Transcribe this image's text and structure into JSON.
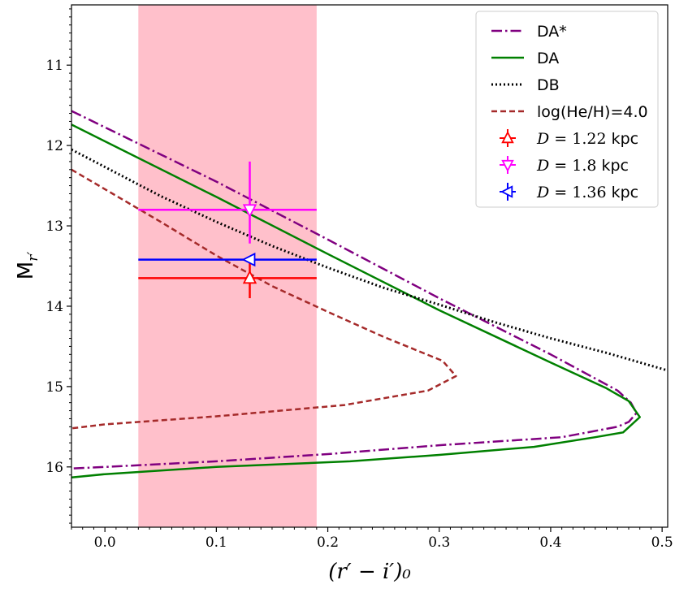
{
  "chart_data": {
    "type": "line",
    "xlabel": "(r′ − i′)₀",
    "ylabel": "M",
    "ylabel_sub": "r′",
    "xlim": [
      -0.03,
      0.505
    ],
    "ylim": [
      16.75,
      10.25
    ],
    "y_inverted": true,
    "x_ticks": [
      0.0,
      0.1,
      0.2,
      0.3,
      0.4,
      0.5
    ],
    "x_tick_labels": [
      "0.0",
      "0.1",
      "0.2",
      "0.3",
      "0.4",
      "0.5"
    ],
    "y_ticks": [
      11,
      12,
      13,
      14,
      15,
      16
    ],
    "y_tick_labels": [
      "11",
      "12",
      "13",
      "14",
      "15",
      "16"
    ],
    "shaded_band": {
      "x_from": 0.03,
      "x_to": 0.19,
      "color": "#ffc0cb"
    },
    "legend_position": "top-right",
    "series": [
      {
        "name": "DA*",
        "color": "#800080",
        "style": "dashdot",
        "x": [
          -0.03,
          0.1,
          0.2,
          0.3,
          0.4,
          0.46,
          0.472,
          0.477,
          0.47,
          0.46,
          0.41,
          0.3,
          0.2,
          0.1,
          0.0,
          -0.03
        ],
        "y": [
          11.57,
          12.45,
          13.17,
          13.9,
          14.6,
          15.05,
          15.2,
          15.33,
          15.44,
          15.5,
          15.63,
          15.73,
          15.84,
          15.93,
          16.0,
          16.02
        ]
      },
      {
        "name": "DA",
        "color": "#008000",
        "style": "solid",
        "x": [
          -0.03,
          0.1,
          0.2,
          0.3,
          0.4,
          0.45,
          0.47,
          0.48,
          0.465,
          0.44,
          0.385,
          0.3,
          0.22,
          0.1,
          0.0,
          -0.03
        ],
        "y": [
          11.74,
          12.64,
          13.35,
          14.05,
          14.7,
          15.02,
          15.18,
          15.38,
          15.57,
          15.63,
          15.75,
          15.85,
          15.93,
          16.0,
          16.09,
          16.13
        ]
      },
      {
        "name": "DB",
        "color": "#000000",
        "style": "dotted",
        "x": [
          -0.03,
          0.05,
          0.1,
          0.15,
          0.2,
          0.25,
          0.3,
          0.35,
          0.4,
          0.45,
          0.505
        ],
        "y": [
          12.05,
          12.63,
          12.95,
          13.25,
          13.52,
          13.77,
          13.98,
          14.2,
          14.4,
          14.58,
          14.8
        ]
      },
      {
        "name": "log(He/H)=4.0",
        "color": "#a52a2a",
        "style": "dashed",
        "x": [
          -0.03,
          0.05,
          0.1,
          0.15,
          0.2,
          0.25,
          0.28,
          0.303,
          0.315,
          0.29,
          0.215,
          0.1,
          0.0,
          -0.03
        ],
        "y": [
          12.3,
          12.95,
          13.37,
          13.75,
          14.07,
          14.38,
          14.55,
          14.68,
          14.87,
          15.05,
          15.23,
          15.37,
          15.47,
          15.52
        ]
      }
    ],
    "points": [
      {
        "legend": "D = 1.22 kpc",
        "dist": "1.22",
        "x": 0.13,
        "y": 13.65,
        "xerr": [
          0.03,
          0.19
        ],
        "yerr": [
          13.4,
          13.9
        ],
        "marker": "triangle-up",
        "color": "#ff0000"
      },
      {
        "legend": "D = 1.8 kpc",
        "dist": "1.8",
        "x": 0.13,
        "y": 12.8,
        "xerr": [
          0.03,
          0.19
        ],
        "yerr": [
          12.2,
          13.22
        ],
        "marker": "triangle-down",
        "color": "#ff00ff"
      },
      {
        "legend": "D = 1.36 kpc",
        "dist": "1.36",
        "x": 0.13,
        "y": 13.42,
        "xerr": [
          0.03,
          0.19
        ],
        "yerr": [
          13.42,
          13.42
        ],
        "marker": "triangle-left",
        "color": "#0000ff"
      }
    ]
  },
  "legend": {
    "items": [
      {
        "label": "DA*"
      },
      {
        "label": "DA"
      },
      {
        "label": "DB"
      },
      {
        "label": "log(He/H)=4.0"
      },
      {
        "prefix": "D",
        "eq": " = ",
        "value": "1.22",
        "unit": " kpc"
      },
      {
        "prefix": "D",
        "eq": " = ",
        "value": "1.8",
        "unit": " kpc"
      },
      {
        "prefix": "D",
        "eq": " = ",
        "value": "1.36",
        "unit": " kpc"
      }
    ]
  }
}
